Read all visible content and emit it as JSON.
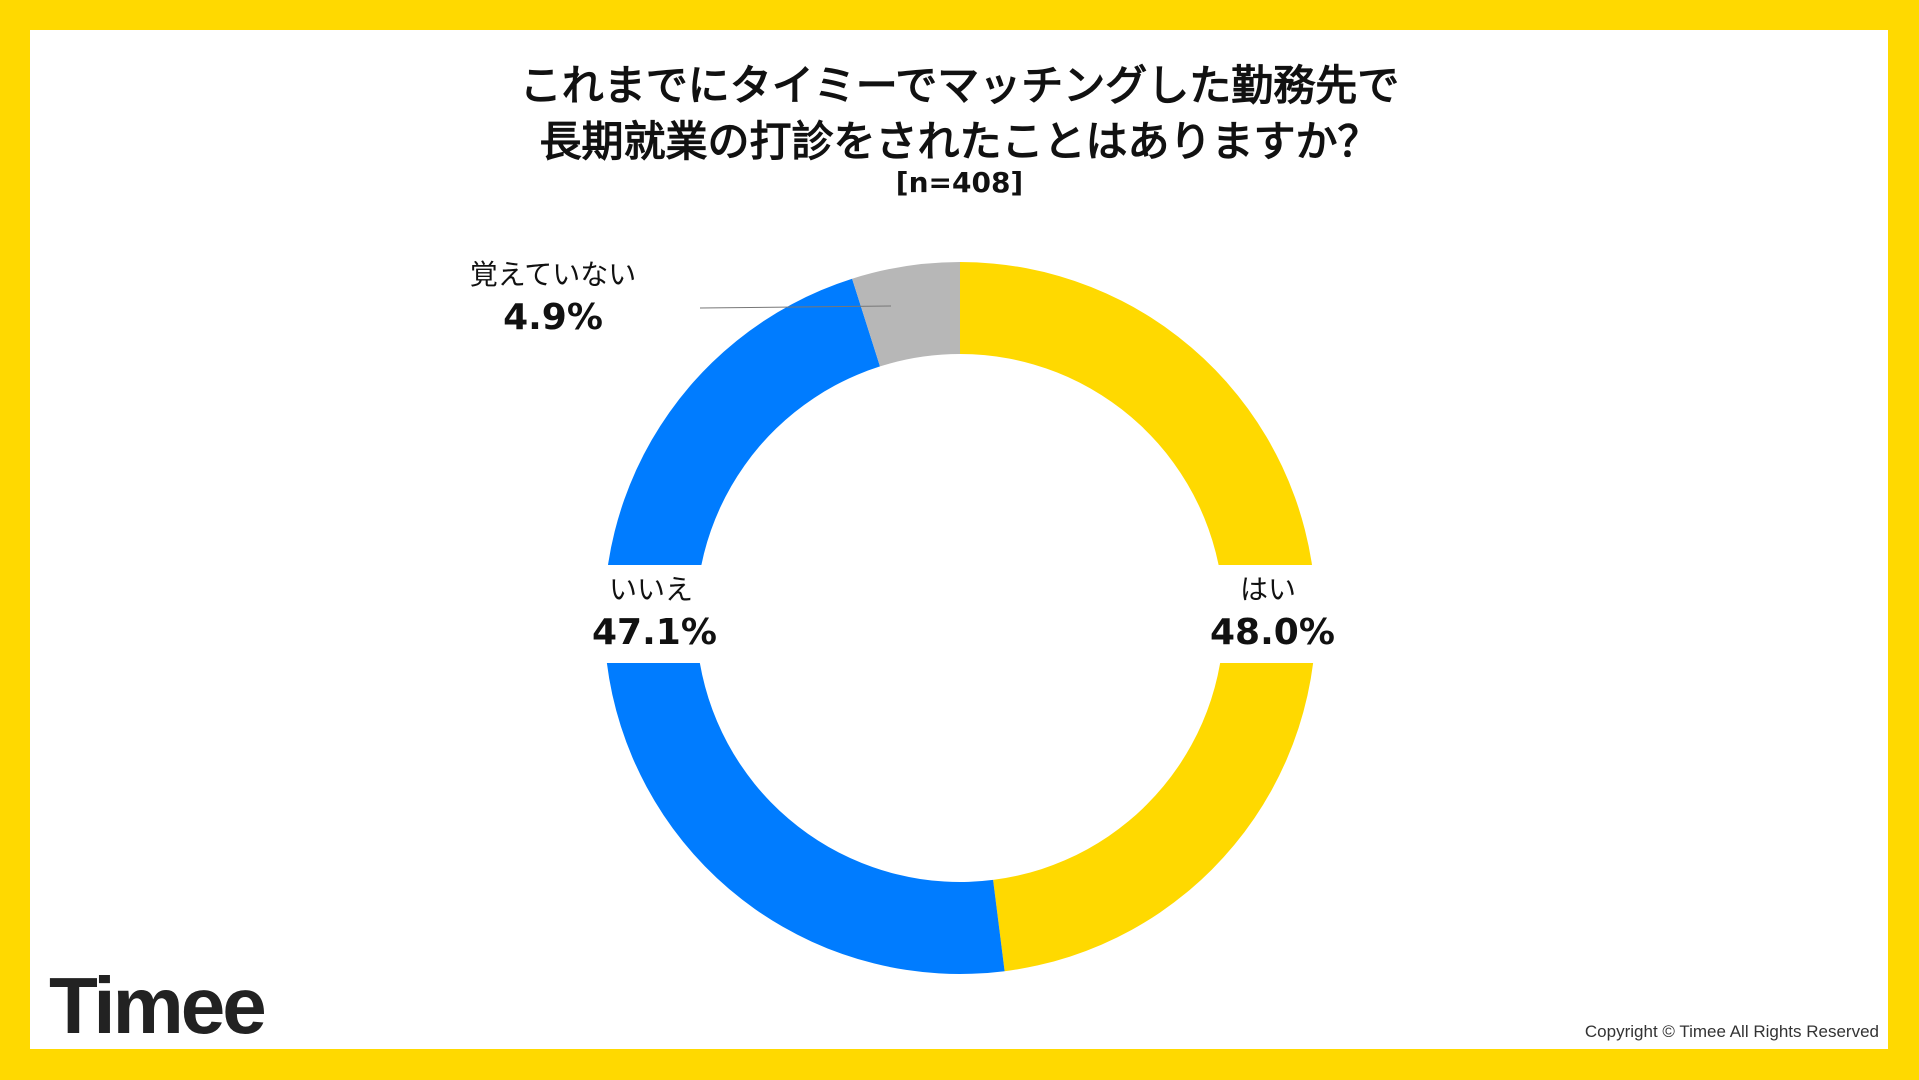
{
  "title_line1": "これまでにタイミーでマッチングした勤務先で",
  "title_line2": "長期就業の打診をされたことはありますか？",
  "sample": "[n=408]",
  "logo": "Timee",
  "copyright": "Copyright © Timee All Rights Reserved",
  "chart_data": {
    "type": "pie",
    "donut": true,
    "title": "これまでにタイミーでマッチングした勤務先で長期就業の打診をされたことはありますか？",
    "categories": [
      "はい",
      "いいえ",
      "覚えていない"
    ],
    "values": [
      48.0,
      47.1,
      4.9
    ],
    "value_labels": [
      "48.0%",
      "47.1%",
      "4.9%"
    ],
    "colors": [
      "#FFD900",
      "#007CFF",
      "#B7B7B7"
    ],
    "start": "top",
    "direction": "clockwise"
  }
}
